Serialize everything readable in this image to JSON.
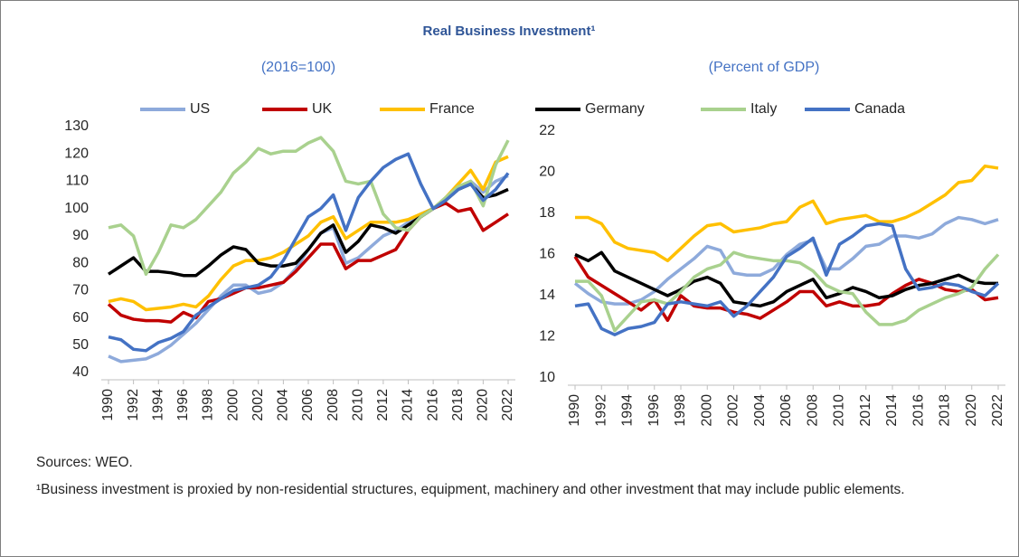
{
  "title": "Real Business Investment¹",
  "legend": [
    {
      "name": "US",
      "color": "#8eaadb"
    },
    {
      "name": "UK",
      "color": "#c00000"
    },
    {
      "name": "France",
      "color": "#ffc000"
    },
    {
      "name": "Germany",
      "color": "#000000"
    },
    {
      "name": "Italy",
      "color": "#a9d18e"
    },
    {
      "name": "Canada",
      "color": "#4472c4"
    }
  ],
  "chart_data": [
    {
      "type": "line",
      "subtitle": "(2016=100)",
      "x": [
        1990,
        1991,
        1992,
        1993,
        1994,
        1995,
        1996,
        1997,
        1998,
        1999,
        2000,
        2001,
        2002,
        2003,
        2004,
        2005,
        2006,
        2007,
        2008,
        2009,
        2010,
        2011,
        2012,
        2013,
        2014,
        2015,
        2016,
        2017,
        2018,
        2019,
        2020,
        2021,
        2022
      ],
      "xlim": [
        1990,
        2022
      ],
      "xticks": [
        1990,
        1992,
        1994,
        1996,
        1998,
        2000,
        2002,
        2004,
        2006,
        2008,
        2010,
        2012,
        2014,
        2016,
        2018,
        2020,
        2022
      ],
      "ylim": [
        40,
        130
      ],
      "yticks": [
        40,
        50,
        60,
        70,
        80,
        90,
        100,
        110,
        120,
        130
      ],
      "grid": false,
      "series": [
        {
          "values": [
            46,
            44,
            44.5,
            45,
            47,
            50,
            54,
            58,
            63,
            68,
            72,
            72,
            69,
            70,
            73,
            78,
            85,
            91,
            93,
            80,
            82,
            86,
            90,
            92,
            95,
            98,
            100,
            104,
            108,
            110,
            106,
            110,
            112
          ]
        },
        {
          "values": [
            65,
            61,
            59.5,
            59,
            59,
            58.5,
            62,
            60,
            66,
            67,
            69,
            71,
            71,
            72,
            73,
            77,
            82,
            87,
            87,
            78,
            81,
            81,
            83,
            85,
            92,
            97,
            100,
            102,
            99,
            100,
            92,
            95,
            98
          ]
        },
        {
          "values": [
            66,
            67,
            66,
            63,
            63.5,
            64,
            65,
            64,
            68,
            74,
            79,
            81,
            81,
            82,
            84,
            87,
            90,
            95,
            97,
            89,
            92,
            95,
            95,
            95,
            96,
            98,
            100,
            104,
            109,
            114,
            107,
            117,
            119
          ]
        },
        {
          "values": [
            76,
            79,
            82,
            77,
            77,
            76.5,
            75.5,
            75.5,
            79,
            83,
            86,
            85,
            80,
            79,
            79,
            80,
            85,
            91,
            94,
            84,
            88,
            94,
            93,
            91,
            94,
            97,
            100,
            103,
            107,
            109,
            104,
            105,
            107
          ]
        },
        {
          "values": [
            93,
            94,
            90,
            76,
            84,
            94,
            93,
            96,
            101,
            106,
            113,
            117,
            122,
            120,
            121,
            121,
            124,
            126,
            121,
            110,
            109,
            110,
            98,
            93,
            92,
            97,
            100,
            104,
            108,
            110,
            101,
            116,
            125
          ]
        },
        {
          "values": [
            53,
            52,
            48.5,
            48,
            51,
            52.5,
            55,
            61,
            64,
            67,
            70,
            71,
            72,
            75,
            81,
            89,
            97,
            100,
            105,
            92,
            104,
            110,
            115,
            118,
            120,
            109,
            100,
            103,
            107,
            109,
            103,
            107,
            113
          ]
        }
      ]
    },
    {
      "type": "line",
      "subtitle": "(Percent of GDP)",
      "x": [
        1990,
        1991,
        1992,
        1993,
        1994,
        1995,
        1996,
        1997,
        1998,
        1999,
        2000,
        2001,
        2002,
        2003,
        2004,
        2005,
        2006,
        2007,
        2008,
        2009,
        2010,
        2011,
        2012,
        2013,
        2014,
        2015,
        2016,
        2017,
        2018,
        2019,
        2020,
        2021,
        2022
      ],
      "xlim": [
        1990,
        2022
      ],
      "xticks": [
        1990,
        1992,
        1994,
        1996,
        1998,
        2000,
        2002,
        2004,
        2006,
        2008,
        2010,
        2012,
        2014,
        2016,
        2018,
        2020,
        2022
      ],
      "ylim": [
        10,
        22
      ],
      "yticks": [
        10,
        12,
        14,
        16,
        18,
        20,
        22
      ],
      "grid": false,
      "series": [
        {
          "values": [
            14.6,
            14.1,
            13.7,
            13.6,
            13.6,
            13.8,
            14.2,
            14.8,
            15.3,
            15.8,
            16.4,
            16.2,
            15.1,
            15.0,
            15.0,
            15.3,
            16.0,
            16.5,
            16.7,
            15.3,
            15.3,
            15.8,
            16.4,
            16.5,
            16.9,
            16.9,
            16.8,
            17.0,
            17.5,
            17.8,
            17.7,
            17.5,
            17.7
          ]
        },
        {
          "values": [
            15.9,
            14.9,
            14.5,
            14.1,
            13.7,
            13.3,
            13.8,
            12.8,
            14.0,
            13.5,
            13.4,
            13.4,
            13.2,
            13.1,
            12.9,
            13.3,
            13.7,
            14.2,
            14.2,
            13.5,
            13.7,
            13.5,
            13.5,
            13.6,
            14.1,
            14.5,
            14.8,
            14.6,
            14.3,
            14.2,
            14.3,
            13.8,
            13.9
          ]
        },
        {
          "values": [
            17.8,
            17.8,
            17.5,
            16.6,
            16.3,
            16.2,
            16.1,
            15.7,
            16.3,
            16.9,
            17.4,
            17.5,
            17.1,
            17.2,
            17.3,
            17.5,
            17.6,
            18.3,
            18.6,
            17.5,
            17.7,
            17.8,
            17.9,
            17.6,
            17.6,
            17.8,
            18.1,
            18.5,
            18.9,
            19.5,
            19.6,
            20.3,
            20.2
          ]
        },
        {
          "values": [
            16.0,
            15.7,
            16.1,
            15.2,
            14.9,
            14.6,
            14.3,
            14.0,
            14.3,
            14.7,
            14.9,
            14.6,
            13.7,
            13.6,
            13.5,
            13.7,
            14.2,
            14.5,
            14.8,
            13.9,
            14.1,
            14.4,
            14.2,
            13.9,
            14.0,
            14.3,
            14.5,
            14.6,
            14.8,
            15.0,
            14.7,
            14.6,
            14.6
          ]
        },
        {
          "values": [
            14.7,
            14.7,
            14.0,
            12.3,
            13.0,
            13.7,
            13.8,
            13.6,
            14.2,
            14.9,
            15.3,
            15.5,
            16.1,
            15.9,
            15.8,
            15.7,
            15.7,
            15.6,
            15.2,
            14.5,
            14.2,
            14.1,
            13.2,
            12.6,
            12.6,
            12.8,
            13.3,
            13.6,
            13.9,
            14.1,
            14.4,
            15.3,
            16.0
          ]
        },
        {
          "values": [
            13.5,
            13.6,
            12.4,
            12.1,
            12.4,
            12.5,
            12.7,
            13.6,
            13.7,
            13.6,
            13.5,
            13.7,
            13.0,
            13.5,
            14.2,
            14.9,
            15.9,
            16.3,
            16.8,
            15.0,
            16.5,
            16.9,
            17.4,
            17.5,
            17.4,
            15.3,
            14.3,
            14.4,
            14.6,
            14.5,
            14.2,
            14.0,
            14.6
          ]
        }
      ]
    }
  ],
  "notes": [
    "Sources: WEO.",
    "¹Business investment is proxied by non-residential structures, equipment, machinery and other investment that may include public elements."
  ]
}
